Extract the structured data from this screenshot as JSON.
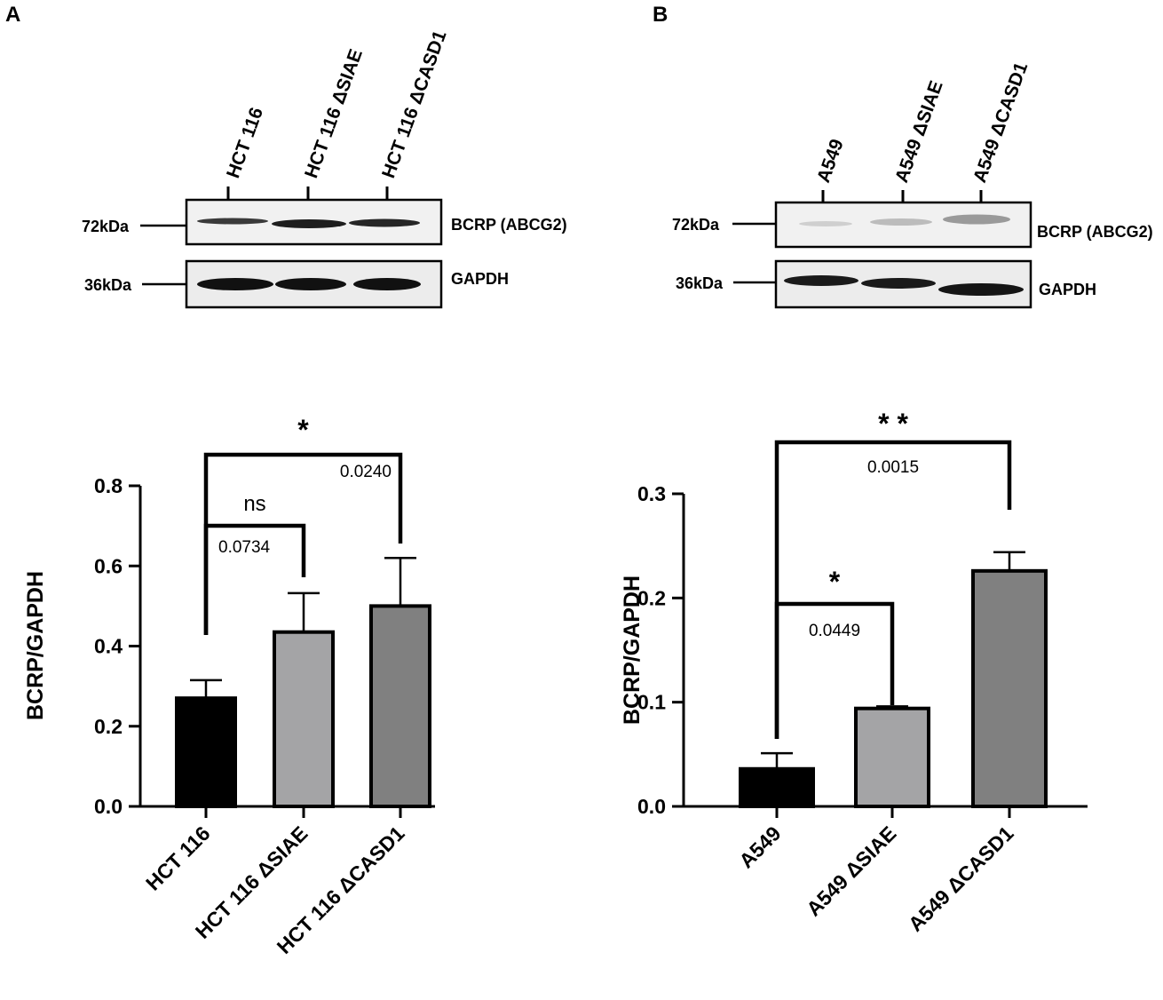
{
  "panels": [
    {
      "letter": "A",
      "blot": {
        "lane_labels": [
          "HCT 116",
          "HCT 116 ΔSIAE",
          "HCT 116 ΔCASD1"
        ],
        "rows": [
          {
            "marker": "72kDa",
            "protein": "BCRP (ABCG2)"
          },
          {
            "marker": "36kDa",
            "protein": "GAPDH"
          }
        ]
      }
    },
    {
      "letter": "B",
      "blot": {
        "lane_labels": [
          "A549",
          "A549 ΔSIAE",
          "A549 ΔCASD1"
        ],
        "rows": [
          {
            "marker": "72kDa",
            "protein": "BCRP (ABCG2)"
          },
          {
            "marker": "36kDa",
            "protein": "GAPDH"
          }
        ]
      }
    }
  ],
  "chart_data": [
    {
      "type": "bar",
      "ylabel": "BCRP/GAPDH",
      "categories": [
        "HCT  116",
        "HCT  116 ΔSIAE",
        "HCT 116 ΔCASD1"
      ],
      "values": [
        0.27,
        0.435,
        0.5
      ],
      "errors": [
        0.045,
        0.097,
        0.12
      ],
      "colors": [
        "#000000",
        "#a4a4a6",
        "#808080"
      ],
      "ylim": [
        0,
        0.8
      ],
      "yticks": [
        "0.0",
        "0.2",
        "0.4",
        "0.6",
        "0.8"
      ],
      "comparisons": [
        {
          "from": 0,
          "to": 1,
          "significance": "ns",
          "p": "0.0734"
        },
        {
          "from": 0,
          "to": 2,
          "significance": "*",
          "p": "0.0240"
        }
      ]
    },
    {
      "type": "bar",
      "ylabel": "BCRP/GAPDH",
      "categories": [
        "A549",
        "A549 ΔSIAE",
        "A549 ΔCASD1"
      ],
      "values": [
        0.036,
        0.094,
        0.226
      ],
      "errors": [
        0.015,
        0.002,
        0.018
      ],
      "colors": [
        "#000000",
        "#a4a4a6",
        "#808080"
      ],
      "ylim": [
        0,
        0.3
      ],
      "yticks": [
        "0.0",
        "0.1",
        "0.2",
        "0.3"
      ],
      "comparisons": [
        {
          "from": 0,
          "to": 1,
          "significance": "*",
          "p": "0.0449"
        },
        {
          "from": 0,
          "to": 2,
          "significance": "* *",
          "p": "0.0015"
        }
      ]
    }
  ]
}
